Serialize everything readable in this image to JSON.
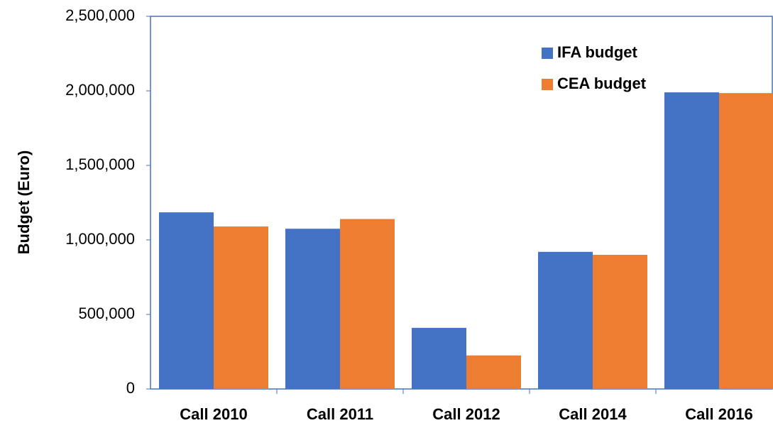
{
  "chart_data": {
    "type": "bar",
    "y_label": "Budget (Euro)",
    "categories": [
      "Call 2010",
      "Call 2011",
      "Call 2012",
      "Call 2014",
      "Call 2016"
    ],
    "series": [
      {
        "name": "IFA budget",
        "color": "#4472c4",
        "values": [
          1185000,
          1075000,
          410000,
          920000,
          1990000
        ]
      },
      {
        "name": "CEA budget",
        "color": "#ed7d31",
        "values": [
          1090000,
          1140000,
          225000,
          900000,
          1985000
        ]
      }
    ],
    "ylim": [
      0,
      2500000
    ],
    "yticks": [
      0,
      {
        "value": 500000,
        "label": "500,000"
      },
      {
        "value": 1000000,
        "label": "1,000,000"
      },
      {
        "value": 1500000,
        "label": "1,500,000"
      },
      {
        "value": 2000000,
        "label": "2,000,000"
      },
      {
        "value": 2500000,
        "label": "2,500,000"
      }
    ],
    "legend": "upper right"
  }
}
